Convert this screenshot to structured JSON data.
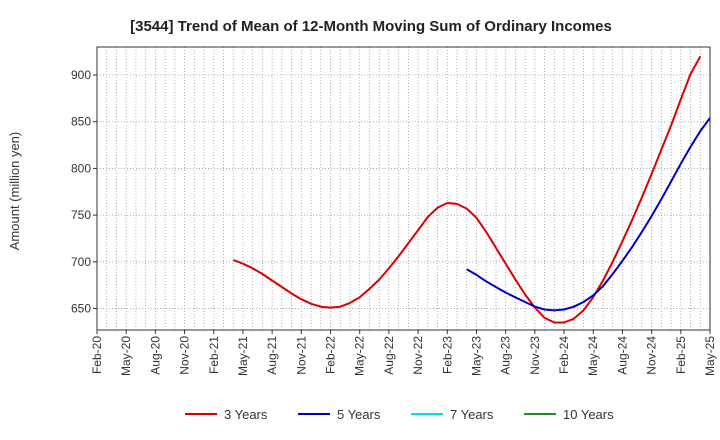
{
  "chart_data": {
    "type": "line",
    "title": "[3544]  Trend of Mean of 12-Month Moving Sum of Ordinary Incomes",
    "xlabel": "",
    "ylabel": "Amount (million yen)",
    "x_ticks": [
      "Feb-20",
      "May-20",
      "Aug-20",
      "Nov-20",
      "Feb-21",
      "May-21",
      "Aug-21",
      "Nov-21",
      "Feb-22",
      "May-22",
      "Aug-22",
      "Nov-22",
      "Feb-23",
      "May-23",
      "Aug-23",
      "Nov-23",
      "Feb-24",
      "May-24",
      "Aug-24",
      "Nov-24",
      "Feb-25",
      "May-25"
    ],
    "y_ticks": [
      650,
      700,
      750,
      800,
      850,
      900
    ],
    "ylim": [
      627,
      930
    ],
    "grid": true,
    "legend_position": "bottom",
    "series": [
      {
        "name": "3 Years",
        "color": "#dd0000",
        "points": [
          [
            "Apr-21",
            702
          ],
          [
            "May-21",
            698
          ],
          [
            "Jun-21",
            693
          ],
          [
            "Jul-21",
            687
          ],
          [
            "Aug-21",
            680
          ],
          [
            "Sep-21",
            673
          ],
          [
            "Oct-21",
            666
          ],
          [
            "Nov-21",
            660
          ],
          [
            "Dec-21",
            655
          ],
          [
            "Jan-22",
            652
          ],
          [
            "Feb-22",
            651
          ],
          [
            "Mar-22",
            652
          ],
          [
            "Apr-22",
            656
          ],
          [
            "May-22",
            662
          ],
          [
            "Jun-22",
            671
          ],
          [
            "Jul-22",
            681
          ],
          [
            "Aug-22",
            693
          ],
          [
            "Sep-22",
            706
          ],
          [
            "Oct-22",
            720
          ],
          [
            "Nov-22",
            734
          ],
          [
            "Dec-22",
            748
          ],
          [
            "Jan-23",
            758
          ],
          [
            "Feb-23",
            763
          ],
          [
            "Mar-23",
            762
          ],
          [
            "Apr-23",
            757
          ],
          [
            "May-23",
            747
          ],
          [
            "Jun-23",
            732
          ],
          [
            "Jul-23",
            715
          ],
          [
            "Aug-23",
            698
          ],
          [
            "Sep-23",
            681
          ],
          [
            "Oct-23",
            665
          ],
          [
            "Nov-23",
            651
          ],
          [
            "Dec-23",
            640
          ],
          [
            "Jan-24",
            635
          ],
          [
            "Feb-24",
            635
          ],
          [
            "Mar-24",
            639
          ],
          [
            "Apr-24",
            648
          ],
          [
            "May-24",
            662
          ],
          [
            "Jun-24",
            680
          ],
          [
            "Jul-24",
            700
          ],
          [
            "Aug-24",
            722
          ],
          [
            "Sep-24",
            745
          ],
          [
            "Oct-24",
            769
          ],
          [
            "Nov-24",
            794
          ],
          [
            "Dec-24",
            820
          ],
          [
            "Jan-25",
            846
          ],
          [
            "Feb-25",
            874
          ],
          [
            "Mar-25",
            901
          ],
          [
            "Apr-25",
            920
          ]
        ]
      },
      {
        "name": "5 Years",
        "color": "#0000cc",
        "points": [
          [
            "Apr-23",
            692
          ],
          [
            "May-23",
            686
          ],
          [
            "Jun-23",
            679
          ],
          [
            "Jul-23",
            673
          ],
          [
            "Aug-23",
            667
          ],
          [
            "Sep-23",
            662
          ],
          [
            "Oct-23",
            657
          ],
          [
            "Nov-23",
            652
          ],
          [
            "Dec-23",
            649
          ],
          [
            "Jan-24",
            648
          ],
          [
            "Feb-24",
            649
          ],
          [
            "Mar-24",
            652
          ],
          [
            "Apr-24",
            657
          ],
          [
            "May-24",
            664
          ],
          [
            "Jun-24",
            674
          ],
          [
            "Jul-24",
            687
          ],
          [
            "Aug-24",
            701
          ],
          [
            "Sep-24",
            716
          ],
          [
            "Oct-24",
            732
          ],
          [
            "Nov-24",
            749
          ],
          [
            "Dec-24",
            767
          ],
          [
            "Jan-25",
            786
          ],
          [
            "Feb-25",
            805
          ],
          [
            "Mar-25",
            823
          ],
          [
            "Apr-25",
            840
          ],
          [
            "May-25",
            854
          ]
        ]
      },
      {
        "name": "7 Years",
        "color": "#00dddd",
        "points": []
      },
      {
        "name": "10 Years",
        "color": "#228822",
        "points": []
      }
    ]
  }
}
